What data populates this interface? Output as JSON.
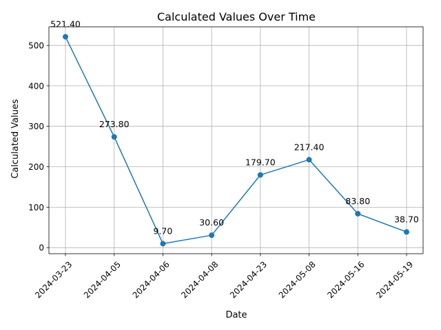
{
  "chart_data": {
    "type": "line",
    "title": "Calculated Values Over Time",
    "xlabel": "Date",
    "ylabel": "Calculated Values",
    "categories": [
      "2024-03-23",
      "2024-04-05",
      "2024-04-06",
      "2024-04-08",
      "2024-04-23",
      "2024-05-08",
      "2024-05-16",
      "2024-05-19"
    ],
    "series": [
      {
        "values": [
          521.4,
          273.8,
          9.7,
          30.6,
          179.7,
          217.4,
          83.8,
          38.7
        ],
        "data_labels": [
          "521.40",
          "273.80",
          "9.70",
          "30.60",
          "179.70",
          "217.40",
          "83.80",
          "38.70"
        ],
        "color": "#1f77b4",
        "marker": "circle"
      }
    ],
    "yticks": [
      "0",
      "100",
      "200",
      "300",
      "400",
      "500"
    ],
    "ylim": [
      -15,
      546
    ],
    "grid": true,
    "x_tick_rotation": 45
  }
}
